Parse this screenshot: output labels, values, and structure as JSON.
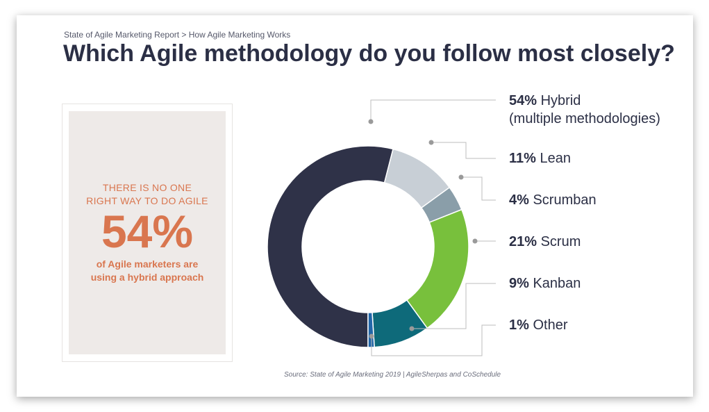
{
  "header": {
    "breadcrumb": "State of Agile Marketing Report  > How Agile Marketing Works",
    "title": "Which Agile methodology do you follow most closely?"
  },
  "callout": {
    "line1": "THERE IS NO ONE",
    "line2": "RIGHT WAY TO DO AGILE",
    "big": "54%",
    "sub1": "of Agile marketers are",
    "sub2": "using a hybrid approach"
  },
  "source": "Source: State of Agile Marketing 2019 | AgileSherpas and CoSchedule",
  "colors": {
    "title": "#2b2f45",
    "accent": "#d9764f",
    "leader": "#bdbdbd",
    "dot": "#9a9a9a"
  },
  "chart_data": {
    "type": "pie",
    "donut": true,
    "slices": [
      {
        "pct": "54%",
        "label": "Hybrid",
        "label2": "(multiple methodologies)",
        "value": 54,
        "color": "#2f3248"
      },
      {
        "pct": "11%",
        "label": "Lean",
        "label2": "",
        "value": 11,
        "color": "#c8cfd6"
      },
      {
        "pct": "4%",
        "label": "Scrumban",
        "label2": "",
        "value": 4,
        "color": "#8a9ea9"
      },
      {
        "pct": "21%",
        "label": "Scrum",
        "label2": "",
        "value": 21,
        "color": "#78c03c"
      },
      {
        "pct": "9%",
        "label": "Kanban",
        "label2": "",
        "value": 9,
        "color": "#0e6a7a"
      },
      {
        "pct": "1%",
        "label": "Other",
        "label2": "",
        "value": 1,
        "color": "#2166a8"
      }
    ]
  }
}
